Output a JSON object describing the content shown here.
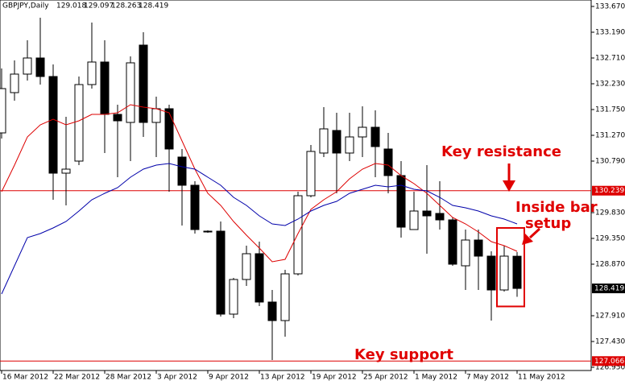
{
  "chart_data": {
    "type": "candlestick",
    "title": "GBPJPY,Daily",
    "categories": [
      "16 Mar 2012",
      null,
      null,
      null,
      "22 Mar 2012",
      null,
      null,
      null,
      "28 Mar 2012",
      null,
      null,
      null,
      "3 Apr 2012",
      null,
      null,
      null,
      "9 Apr 2012",
      null,
      null,
      null,
      "13 Apr 2012",
      null,
      null,
      null,
      "19 Apr 2012",
      null,
      null,
      null,
      "25 Apr 2012",
      null,
      null,
      null,
      "1 May 2012",
      null,
      null,
      null,
      "7 May 2012",
      null,
      null,
      null,
      "11 May 2012"
    ],
    "open": [
      131.315,
      132.065,
      132.41,
      132.71,
      132.365,
      130.565,
      130.79,
      132.215,
      132.635,
      131.66,
      131.51,
      132.95,
      131.51,
      131.765,
      130.865,
      130.34,
      129.485,
      129.485,
      127.94,
      128.585,
      129.065,
      128.165,
      127.82,
      128.69,
      130.145,
      130.94,
      131.36,
      130.94,
      131.24,
      131.42,
      131.015,
      130.52,
      129.515,
      129.86,
      129.815,
      129.695,
      128.84,
      129.32,
      129.02,
      128.39,
      129.018
    ],
    "high": [
      132.515,
      132.665,
      133.04,
      133.46,
      132.59,
      131.615,
      132.365,
      133.37,
      133.04,
      131.84,
      132.74,
      133.19,
      131.99,
      131.84,
      131.015,
      130.415,
      129.5,
      129.665,
      128.615,
      129.215,
      129.29,
      128.39,
      128.765,
      130.22,
      131.09,
      131.795,
      131.69,
      131.69,
      131.81,
      131.735,
      131.315,
      130.79,
      130.22,
      130.715,
      130.415,
      129.74,
      129.515,
      129.515,
      129.11,
      129.215,
      129.097
    ],
    "low": [
      131.21,
      131.915,
      132.29,
      132.215,
      130.07,
      129.965,
      130.715,
      132.14,
      130.94,
      130.49,
      130.79,
      131.24,
      130.865,
      130.22,
      129.59,
      129.44,
      129.455,
      127.895,
      127.865,
      128.465,
      128.09,
      127.085,
      127.52,
      128.66,
      130.115,
      130.865,
      130.19,
      130.79,
      130.865,
      130.49,
      130.19,
      129.365,
      129.515,
      129.065,
      129.515,
      128.84,
      128.39,
      128.39,
      127.82,
      128.36,
      128.263
    ],
    "close": [
      132.14,
      132.41,
      132.71,
      132.365,
      130.565,
      130.64,
      132.215,
      132.635,
      131.66,
      131.54,
      132.62,
      131.51,
      131.765,
      131.015,
      130.34,
      129.515,
      129.47,
      127.94,
      128.585,
      129.065,
      128.165,
      127.82,
      128.69,
      130.145,
      130.97,
      131.39,
      130.94,
      131.24,
      131.42,
      131.06,
      130.52,
      129.56,
      129.86,
      129.77,
      129.695,
      128.87,
      129.32,
      129.02,
      128.39,
      129.02,
      128.419
    ],
    "up_color": "#ffffff",
    "down_color": "#000000",
    "series": [
      {
        "color": "#dd0000",
        "values": [
          130.22,
          130.715,
          131.24,
          131.465,
          131.57,
          131.465,
          131.54,
          131.66,
          131.66,
          131.69,
          131.84,
          131.795,
          131.765,
          131.69,
          131.165,
          130.64,
          130.19,
          129.965,
          129.665,
          129.41,
          129.17,
          128.915,
          128.96,
          129.44,
          129.89,
          130.07,
          130.22,
          130.46,
          130.64,
          130.745,
          130.715,
          130.52,
          130.37,
          130.19,
          129.965,
          129.74,
          129.62,
          129.47,
          129.29,
          129.215,
          129.11
        ]
      },
      {
        "color": "#0000aa",
        "values": [
          128.315,
          128.84,
          129.365,
          129.44,
          129.545,
          129.665,
          129.86,
          130.07,
          130.19,
          130.295,
          130.49,
          130.64,
          130.715,
          130.745,
          130.685,
          130.64,
          130.49,
          130.34,
          130.115,
          129.965,
          129.77,
          129.62,
          129.59,
          129.71,
          129.86,
          129.965,
          130.04,
          130.19,
          130.265,
          130.34,
          130.31,
          130.34,
          130.265,
          130.235,
          130.115,
          129.965,
          129.92,
          129.86,
          129.77,
          129.71,
          129.62
        ]
      }
    ],
    "ylim": [
      126.89,
      133.79
    ],
    "yticks": [
      {
        "value": 133.67,
        "label": "133.670"
      },
      {
        "value": 133.19,
        "label": "133.190"
      },
      {
        "value": 132.71,
        "label": "132.710"
      },
      {
        "value": 132.23,
        "label": "132.230"
      },
      {
        "value": 131.75,
        "label": "131.750"
      },
      {
        "value": 131.27,
        "label": "131.270"
      },
      {
        "value": 130.79,
        "label": "130.790"
      },
      {
        "value": 129.83,
        "label": "129.830"
      },
      {
        "value": 129.35,
        "label": "129.350"
      },
      {
        "value": 128.87,
        "label": "128.870"
      },
      {
        "value": 127.91,
        "label": "127.910"
      },
      {
        "value": 127.43,
        "label": "127.430"
      },
      {
        "value": 126.95,
        "label": "126.950"
      }
    ],
    "hlines": [
      {
        "value": 130.239,
        "color": "#dd0000"
      },
      {
        "value": 127.066,
        "color": "#dd0000"
      }
    ],
    "annotations": [
      "Key resistance",
      "Inside bar",
      "setup",
      "Key support"
    ]
  }
}
